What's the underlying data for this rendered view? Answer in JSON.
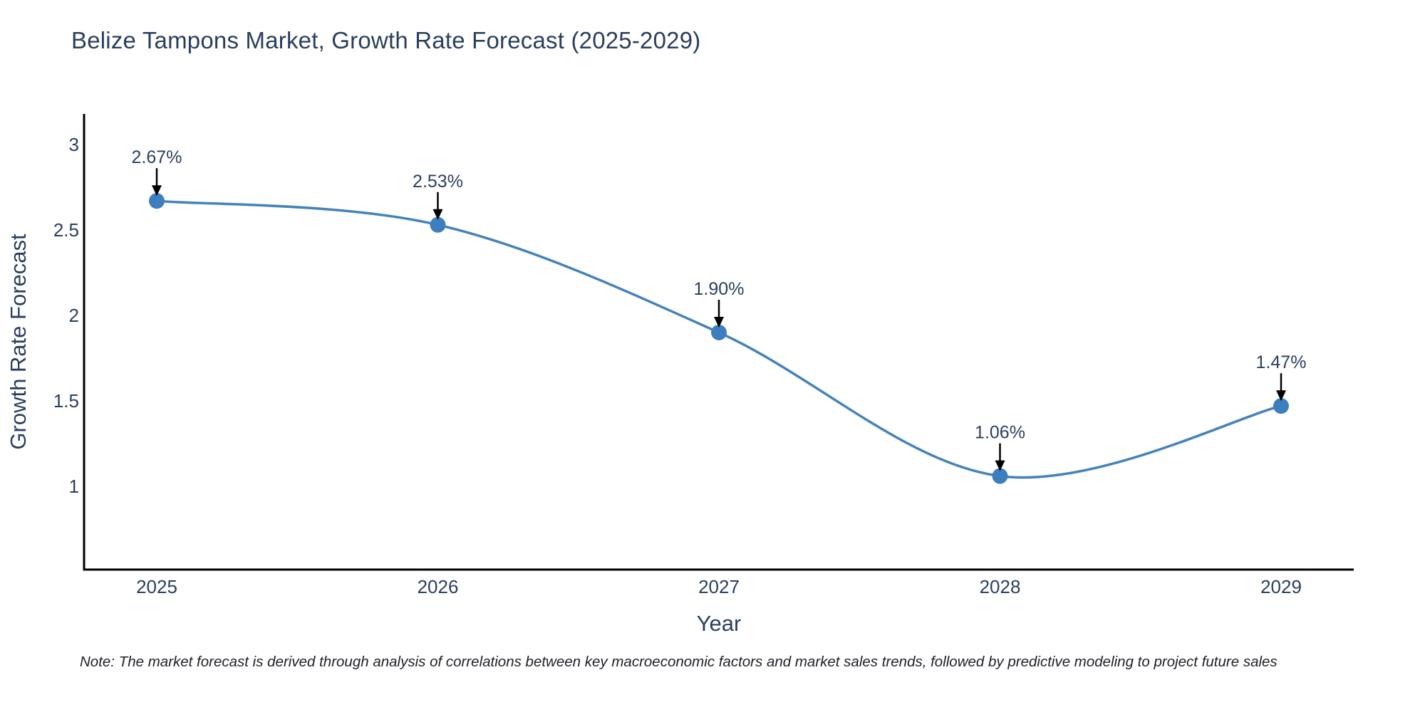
{
  "title": "Belize Tampons Market, Growth Rate Forecast (2025-2029)",
  "note": "Note: The market forecast is derived through analysis of correlations between key macroeconomic factors and market sales trends, followed by predictive modeling to project future sales",
  "chart_data": {
    "type": "line",
    "title": "Belize Tampons Market, Growth Rate Forecast (2025-2029)",
    "xlabel": "Year",
    "ylabel": "Growth Rate Forecast",
    "categories": [
      "2025",
      "2026",
      "2027",
      "2028",
      "2029"
    ],
    "values": [
      2.67,
      2.53,
      1.9,
      1.06,
      1.47
    ],
    "point_labels": [
      "2.67%",
      "2.53%",
      "1.90%",
      "1.06%",
      "1.47%"
    ],
    "y_tick_labels": [
      "3",
      "2.5",
      "2",
      "1.5",
      "1"
    ],
    "y_tick_values": [
      3,
      2.5,
      2,
      1.5,
      1
    ],
    "ylim": [
      0.51,
      3.18
    ],
    "grid": false,
    "legend": false,
    "line_shape": "spline",
    "marker_style": "circle",
    "annotation_style": "label-with-down-arrow",
    "colors": {
      "line": "#4583ba",
      "marker": "#3d7ebf",
      "axis": "#000000",
      "text": "#2a3f5f",
      "annotation_arrow": "#000000",
      "note_text": "#1f1f28",
      "background": "#ffffff"
    }
  }
}
